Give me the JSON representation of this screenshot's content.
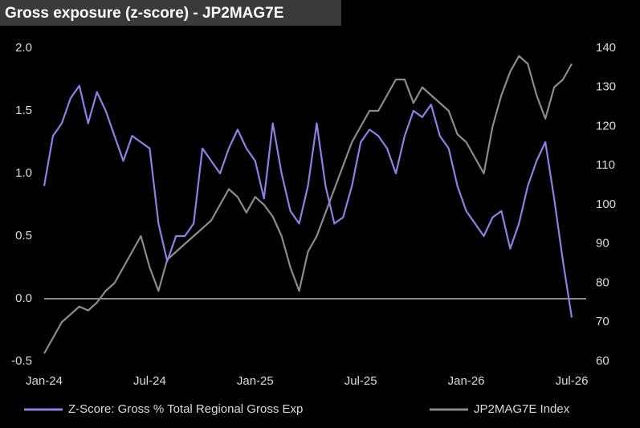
{
  "chart_data": {
    "type": "line",
    "title": "Gross exposure (z-score) - JP2MAG7E",
    "categories": [
      "Jan-24",
      null,
      null,
      null,
      null,
      null,
      null,
      null,
      null,
      null,
      null,
      null,
      "Jul-24",
      null,
      null,
      null,
      null,
      null,
      null,
      null,
      null,
      null,
      null,
      null,
      "Jan-25",
      null,
      null,
      null,
      null,
      null,
      null,
      null,
      null,
      null,
      null,
      null,
      "Jul-25",
      null,
      null,
      null,
      null,
      null,
      null,
      null,
      null,
      null,
      null,
      null,
      "Jan-26",
      null,
      null,
      null,
      null,
      null,
      null,
      null,
      null,
      null,
      null,
      null,
      "Jul-26"
    ],
    "series": [
      {
        "name": "Z-Score: Gross % Total Regional Gross Exp",
        "color": "#8f80e6",
        "axis": "y",
        "values": [
          0.9,
          1.3,
          1.4,
          1.6,
          1.7,
          1.4,
          1.65,
          1.5,
          1.3,
          1.1,
          1.3,
          1.25,
          1.2,
          0.6,
          0.3,
          0.5,
          0.5,
          0.6,
          1.2,
          1.1,
          1.0,
          1.2,
          1.35,
          1.2,
          1.1,
          0.8,
          1.4,
          1.0,
          0.7,
          0.6,
          0.9,
          1.4,
          0.9,
          0.6,
          0.65,
          0.9,
          1.25,
          1.35,
          1.3,
          1.2,
          1.0,
          1.3,
          1.5,
          1.45,
          1.55,
          1.3,
          1.2,
          0.9,
          0.7,
          0.6,
          0.5,
          0.65,
          0.7,
          0.4,
          0.6,
          0.9,
          1.1,
          1.25,
          0.8,
          0.3,
          -0.15
        ]
      },
      {
        "name": "JP2MAG7E Index",
        "color": "#8c8c8c",
        "axis": "y2",
        "values": [
          62,
          66,
          70,
          72,
          74,
          73,
          75,
          78,
          80,
          84,
          88,
          92,
          84,
          78,
          86,
          88,
          90,
          92,
          94,
          96,
          100,
          104,
          102,
          98,
          102,
          100,
          97,
          92,
          84,
          78,
          88,
          92,
          98,
          104,
          110,
          116,
          120,
          124,
          124,
          128,
          132,
          132,
          126,
          130,
          128,
          126,
          124,
          118,
          116,
          112,
          108,
          120,
          128,
          134,
          138,
          136,
          128,
          122,
          130,
          132,
          136
        ]
      }
    ],
    "ylim": [
      -0.5,
      2
    ],
    "yticks": [
      {
        "value": -0.5,
        "label": "-0.5"
      },
      {
        "value": 0,
        "label": "0.0"
      },
      {
        "value": 0.5,
        "label": "0.5"
      },
      {
        "value": 1,
        "label": "1.0"
      },
      {
        "value": 1.5,
        "label": "1.5"
      },
      {
        "value": 2,
        "label": "2.0"
      }
    ],
    "y2lim": [
      60,
      140
    ],
    "y2ticks": [
      60,
      70,
      80,
      90,
      100,
      110,
      120,
      130,
      140
    ],
    "zero_line": true,
    "grid": false,
    "legend": "bottom"
  }
}
